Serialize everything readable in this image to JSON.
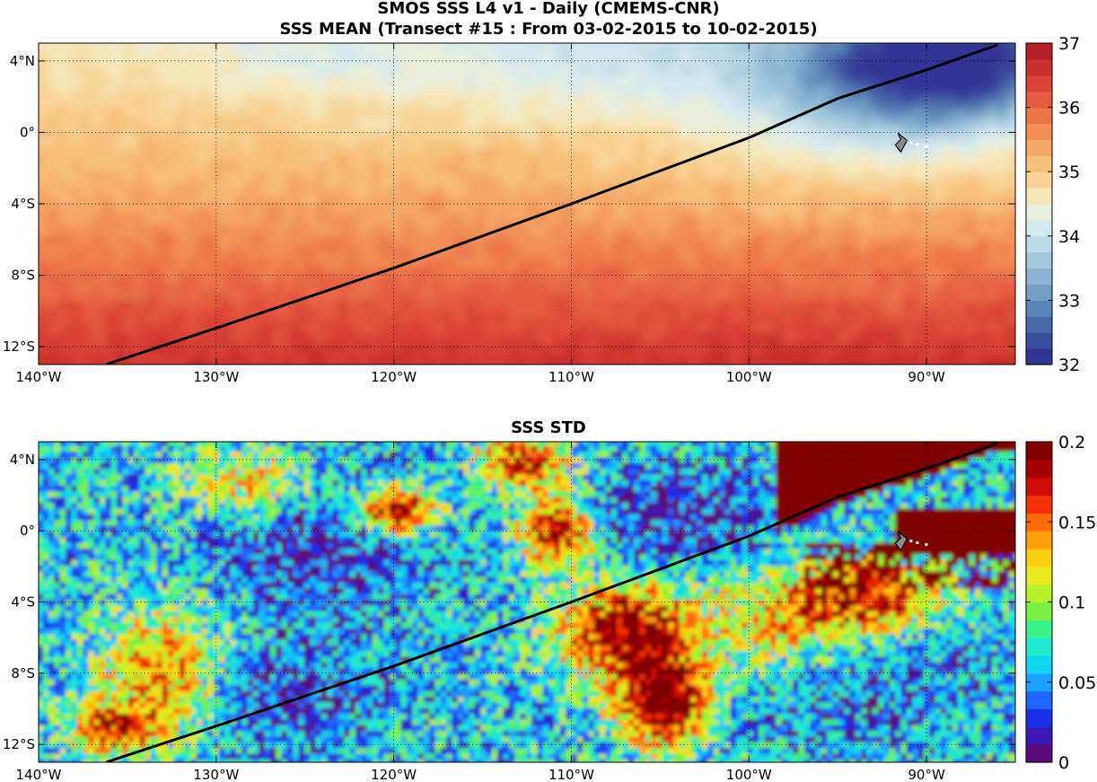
{
  "figure": {
    "title_line1": "SMOS SSS L4 v1 - Daily (CMEMS-CNR)",
    "title_line2": "SSS MEAN (Transect #15 : From 03-02-2015 to 10-02-2015)",
    "subtitle_bottom": "SSS STD"
  },
  "map": {
    "lon_range": [
      -140,
      -85
    ],
    "lat_range": [
      -13,
      5
    ],
    "lon_ticks": [
      -140,
      -130,
      -120,
      -110,
      -100,
      -90
    ],
    "lon_tick_labels": [
      "140°W",
      "130°W",
      "120°W",
      "110°W",
      "100°W",
      "90°W"
    ],
    "lat_ticks": [
      4,
      0,
      -4,
      -8,
      -12
    ],
    "lat_tick_labels": [
      "4°N",
      "0°",
      "4°S",
      "8°S",
      "12°S"
    ],
    "grid": true,
    "transect_points": [
      [
        -136.2,
        -13.0
      ],
      [
        -129.5,
        -10.8
      ],
      [
        -120.0,
        -7.6
      ],
      [
        -110.0,
        -4.0
      ],
      [
        -100.0,
        -0.3
      ],
      [
        -95.0,
        1.9
      ],
      [
        -90.0,
        3.5
      ],
      [
        -86.0,
        4.9
      ]
    ],
    "island": {
      "lon": -91.3,
      "lat": -0.6,
      "name": "galapagos-islands"
    }
  },
  "mean_panel": {
    "colorbar": {
      "min": 32,
      "max": 37,
      "ticks": [
        32,
        33,
        34,
        35,
        36,
        37
      ],
      "tick_labels": [
        "32",
        "33",
        "34",
        "35",
        "36",
        "37"
      ],
      "colors": [
        "#313695",
        "#3a4e9f",
        "#4868aa",
        "#5b84b8",
        "#739fc6",
        "#8ab4d2",
        "#a3c8de",
        "#bcdae8",
        "#d4e8ef",
        "#eaf0de",
        "#f6e7b9",
        "#f8d699",
        "#f8c17e",
        "#f6a868",
        "#f28e56",
        "#ec7449",
        "#e55b3f",
        "#da4235",
        "#c9302c",
        "#b41e26"
      ]
    }
  },
  "std_panel": {
    "colorbar": {
      "min": 0,
      "max": 0.2,
      "ticks": [
        0,
        0.05,
        0.1,
        0.15,
        0.2
      ],
      "tick_labels": [
        "0",
        "0.05",
        "0.1",
        "0.15",
        "0.2"
      ],
      "colors": [
        "#5b0a78",
        "#3a18b4",
        "#1a2fe8",
        "#1e66ff",
        "#1aa0ff",
        "#10d6f0",
        "#22ead0",
        "#3cf08a",
        "#7af244",
        "#b8f22a",
        "#e6ec1e",
        "#ffd012",
        "#ffa00e",
        "#ff6a0a",
        "#f43006",
        "#d00c04",
        "#a80000",
        "#800000"
      ]
    }
  }
}
